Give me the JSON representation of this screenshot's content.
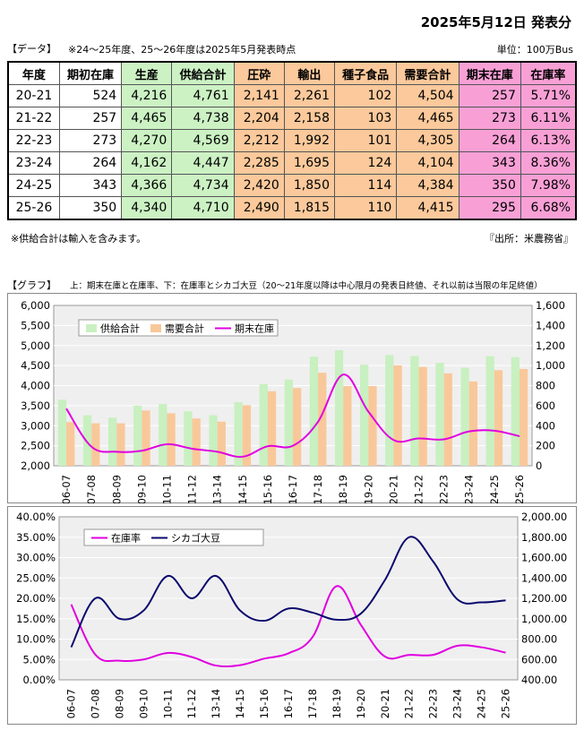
{
  "report_date": "2025年5月12日 発表分",
  "data_section_label": "【データ】",
  "data_note": "※24～25年度、25～26年度は2025年5月発表時点",
  "unit": "単位：100万Bus",
  "table": {
    "headers": [
      "年度",
      "期初在庫",
      "生産",
      "供給合計",
      "圧砕",
      "輸出",
      "種子食品",
      "需要合計",
      "期末在庫",
      "在庫率"
    ],
    "rows": [
      [
        "20-21",
        "524",
        "4,216",
        "4,761",
        "2,141",
        "2,261",
        "102",
        "4,504",
        "257",
        "5.71%"
      ],
      [
        "21-22",
        "257",
        "4,465",
        "4,738",
        "2,204",
        "2,158",
        "103",
        "4,465",
        "273",
        "6.11%"
      ],
      [
        "22-23",
        "273",
        "4,270",
        "4,569",
        "2,212",
        "1,992",
        "101",
        "4,305",
        "264",
        "6.13%"
      ],
      [
        "23-24",
        "264",
        "4,162",
        "4,447",
        "2,285",
        "1,695",
        "124",
        "4,104",
        "343",
        "8.36%"
      ],
      [
        "24-25",
        "343",
        "4,366",
        "4,734",
        "2,420",
        "1,850",
        "114",
        "4,384",
        "350",
        "7.98%"
      ],
      [
        "25-26",
        "350",
        "4,340",
        "4,710",
        "2,490",
        "1,815",
        "110",
        "4,415",
        "295",
        "6.68%"
      ]
    ]
  },
  "footnote_left": "※供給合計は輸入を含みます。",
  "footnote_right": "『出所：米農務省』",
  "graph_section_label": "【グラフ】",
  "graph_note": "上：期末在庫と在庫率、下：在庫率とシカゴ大豆（20～21年度以降は中心限月の発表日終値、それ以前は当限の年足終値）",
  "colors": {
    "supply": "#c8f0c0",
    "demand": "#f9c89a",
    "ending_stock": "#e000e0",
    "stock_ratio": "#e000e0",
    "chicago": "#0a0a6e",
    "plot_bg": "#efefef",
    "grid": "#ffffff"
  },
  "chart_data": [
    {
      "type": "bar",
      "categories": [
        "06-07",
        "07-08",
        "08-09",
        "09-10",
        "10-11",
        "11-12",
        "13-14",
        "14-15",
        "15-16",
        "16-17",
        "17-18",
        "18-19",
        "19-20",
        "20-21",
        "21-22",
        "22-23",
        "23-24",
        "24-25",
        "25-26"
      ],
      "series": [
        {
          "name": "供給合計",
          "axis": "left",
          "kind": "bar",
          "values": [
            3650,
            3260,
            3200,
            3500,
            3540,
            3360,
            3260,
            3590,
            4040,
            4150,
            4720,
            4880,
            4520,
            4761,
            4738,
            4569,
            4447,
            4734,
            4710
          ]
        },
        {
          "name": "需要合計",
          "axis": "left",
          "kind": "bar",
          "values": [
            3090,
            3060,
            3060,
            3380,
            3310,
            3180,
            3100,
            3510,
            3860,
            3940,
            4320,
            3990,
            3990,
            4504,
            4465,
            4305,
            4104,
            4384,
            4415
          ]
        },
        {
          "name": "期末在庫",
          "axis": "right",
          "kind": "line",
          "values": [
            570,
            190,
            140,
            150,
            215,
            170,
            140,
            90,
            195,
            200,
            440,
            910,
            540,
            257,
            273,
            264,
            343,
            350,
            295
          ]
        }
      ],
      "y_left": {
        "min": 2000,
        "max": 6000,
        "step": 500,
        "ticks": [
          "2,000",
          "2,500",
          "3,000",
          "3,500",
          "4,000",
          "4,500",
          "5,000",
          "5,500",
          "6,000"
        ]
      },
      "y_right": {
        "min": 0,
        "max": 1600,
        "step": 200,
        "ticks": [
          "0",
          "200",
          "400",
          "600",
          "800",
          "1,000",
          "1,200",
          "1,400",
          "1,600"
        ]
      },
      "legend_position": "top-left"
    },
    {
      "type": "line",
      "categories": [
        "06-07",
        "07-08",
        "08-09",
        "09-10",
        "10-11",
        "11-12",
        "13-14",
        "14-15",
        "15-16",
        "16-17",
        "17-18",
        "18-19",
        "19-20",
        "20-21",
        "21-22",
        "22-23",
        "23-24",
        "24-25",
        "25-26"
      ],
      "series": [
        {
          "name": "在庫率",
          "axis": "left",
          "values": [
            18.5,
            6.2,
            4.7,
            5.0,
            6.6,
            5.6,
            3.5,
            3.6,
            5.2,
            6.5,
            10.5,
            23.0,
            13.5,
            5.71,
            6.11,
            6.13,
            8.36,
            7.98,
            6.68
          ]
        },
        {
          "name": "シカゴ大豆",
          "axis": "right",
          "values": [
            720,
            1200,
            1000,
            1080,
            1420,
            1200,
            1420,
            1080,
            980,
            1100,
            1060,
            990,
            1050,
            1380,
            1800,
            1560,
            1190,
            1160,
            1180
          ]
        }
      ],
      "y_left": {
        "min": 0,
        "max": 40,
        "step": 5,
        "ticks": [
          "0.00%",
          "5.00%",
          "10.00%",
          "15.00%",
          "20.00%",
          "25.00%",
          "30.00%",
          "35.00%",
          "40.00%"
        ]
      },
      "y_right": {
        "min": 400,
        "max": 2000,
        "step": 200,
        "ticks": [
          "400.00",
          "600.00",
          "800.00",
          "1,000.00",
          "1,200.00",
          "1,400.00",
          "1,600.00",
          "1,800.00",
          "2,000.00"
        ]
      },
      "legend_position": "top-left"
    }
  ]
}
